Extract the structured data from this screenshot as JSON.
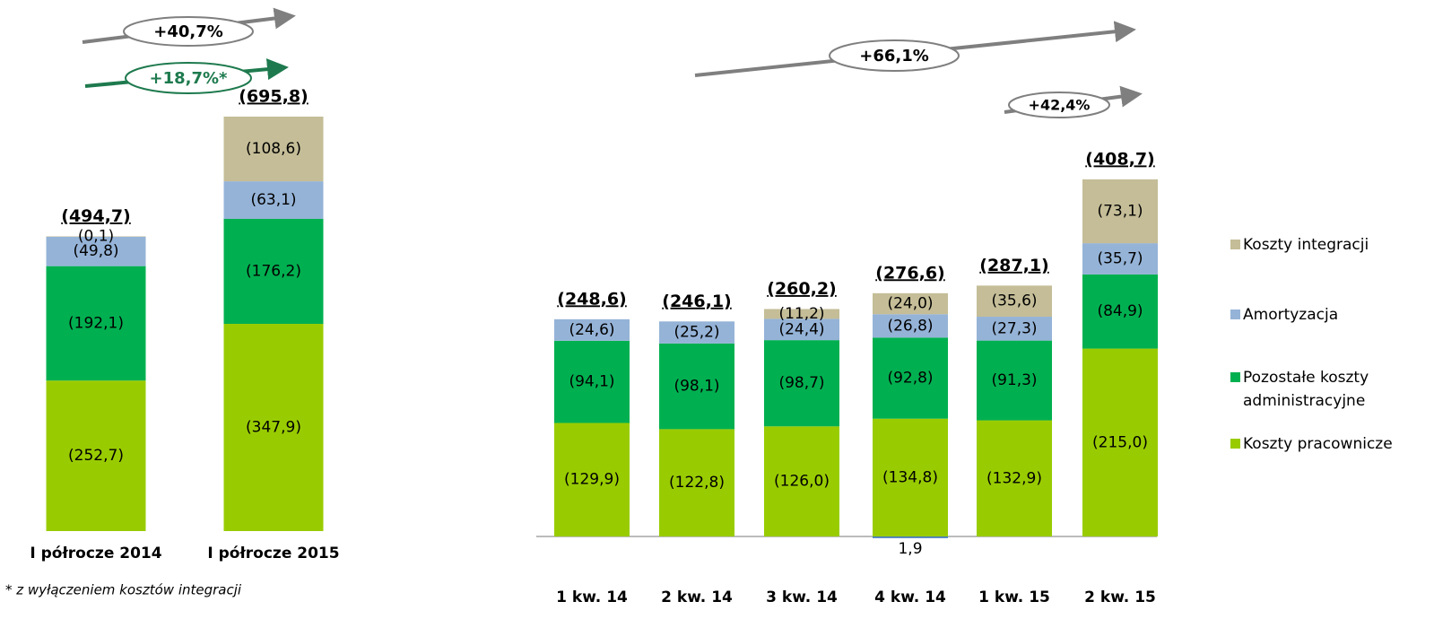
{
  "chart_data": [
    {
      "type": "stacked-bar",
      "categories": [
        "I półrocze 2014",
        "I półrocze 2015"
      ],
      "series": [
        {
          "color": "#99cc00",
          "values": [
            -252.7,
            -347.9
          ],
          "value_labels": [
            "(252,7)",
            "(347,9)"
          ]
        },
        {
          "color": "#00b050",
          "values": [
            -192.1,
            -176.2
          ],
          "value_labels": [
            "(192,1)",
            "(176,2)"
          ]
        },
        {
          "color": "#95b3d7",
          "values": [
            -49.8,
            -63.1
          ],
          "value_labels": [
            "(49,8)",
            "(63,1)"
          ]
        },
        {
          "color": "#c4bd97",
          "values": [
            -0.1,
            -108.6
          ],
          "value_labels": [
            "(0,1)",
            "(108,6)"
          ]
        }
      ],
      "totals": [
        -494.7,
        -695.8
      ],
      "total_labels": [
        "(494,7)",
        "(695,8)"
      ],
      "annotations": [
        "+40,7%",
        "+18,7%*"
      ],
      "note": "* z wyłączeniem kosztów integracji"
    },
    {
      "type": "stacked-bar",
      "categories": [
        "1 kw. 14",
        "2 kw. 14",
        "3 kw. 14",
        "4 kw. 14",
        "1 kw. 15",
        "2 kw. 15"
      ],
      "series": [
        {
          "name": "Koszty pracownicze",
          "color": "#99cc00",
          "values": [
            -129.9,
            -122.8,
            -126.0,
            -134.8,
            -132.9,
            -215.0
          ],
          "value_labels": [
            "(129,9)",
            "(122,8)",
            "(126,0)",
            "(134,8)",
            "(132,9)",
            "(215,0)"
          ]
        },
        {
          "name": "Pozostałe koszty administracyjne",
          "color": "#00b050",
          "values": [
            -94.1,
            -98.1,
            -98.7,
            -92.8,
            -91.3,
            -84.9
          ],
          "value_labels": [
            "(94,1)",
            "(98,1)",
            "(98,7)",
            "(92,8)",
            "(91,3)",
            "(84,9)"
          ]
        },
        {
          "name": "Amortyzacja",
          "color": "#95b3d7",
          "values": [
            -24.6,
            -25.2,
            -24.4,
            -26.8,
            -27.3,
            -35.7
          ],
          "value_labels": [
            "(24,6)",
            "(25,2)",
            "(24,4)",
            "(26,8)",
            "(27,3)",
            "(35,7)"
          ]
        },
        {
          "name": "Koszty integracji",
          "color": "#c4bd97",
          "values": [
            null,
            null,
            -11.2,
            -24.0,
            -35.6,
            -73.1
          ],
          "value_labels": [
            null,
            null,
            "(11,2)",
            "(24,0)",
            "(35,6)",
            "(73,1)"
          ]
        },
        {
          "color": "#4a7ebb",
          "values": [
            null,
            null,
            null,
            1.9,
            null,
            null
          ],
          "value_labels": [
            null,
            null,
            null,
            "1,9",
            null,
            null
          ]
        }
      ],
      "totals": [
        -248.6,
        -246.1,
        -260.2,
        -276.6,
        -287.1,
        -408.7
      ],
      "total_labels": [
        "(248,6)",
        "(246,1)",
        "(260,2)",
        "(276,6)",
        "(287,1)",
        "(408,7)"
      ],
      "annotations": [
        "+66,1%",
        "+42,4%"
      ],
      "legend": "right"
    }
  ]
}
